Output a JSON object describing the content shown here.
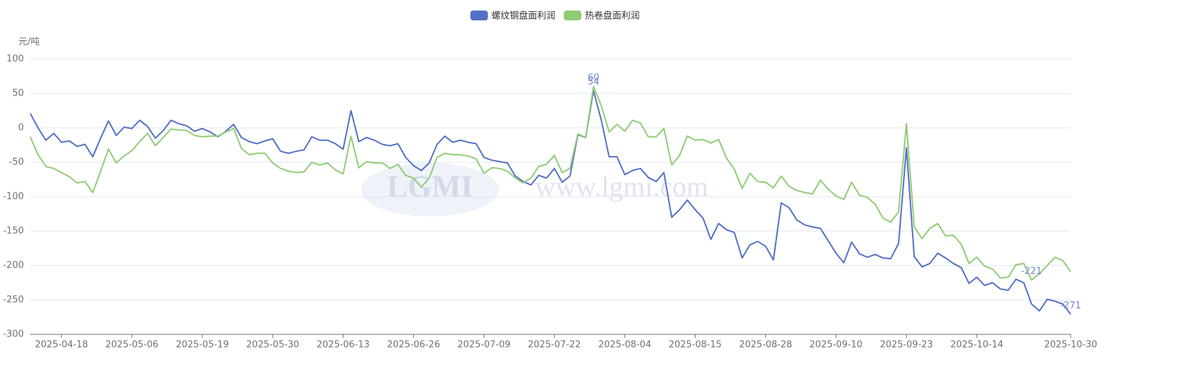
{
  "chart_data": {
    "type": "line",
    "y_unit": "元/吨",
    "watermark": {
      "logo": "LGMI",
      "site": "www.lgmi.com"
    },
    "legend": "top-center",
    "grid": true,
    "mark_extremes": true,
    "categories": [
      null,
      null,
      null,
      null,
      "2025-04-18",
      null,
      null,
      null,
      null,
      null,
      null,
      null,
      null,
      "2025-05-06",
      null,
      null,
      null,
      null,
      null,
      null,
      null,
      null,
      "2025-05-19",
      null,
      null,
      null,
      null,
      null,
      null,
      null,
      null,
      "2025-05-30",
      null,
      null,
      null,
      null,
      null,
      null,
      null,
      null,
      "2025-06-13",
      null,
      null,
      null,
      null,
      null,
      null,
      null,
      null,
      "2025-06-26",
      null,
      null,
      null,
      null,
      null,
      null,
      null,
      null,
      "2025-07-09",
      null,
      null,
      null,
      null,
      null,
      null,
      null,
      null,
      "2025-07-22",
      null,
      null,
      null,
      null,
      null,
      null,
      null,
      null,
      "2025-08-04",
      null,
      null,
      null,
      null,
      null,
      null,
      null,
      null,
      "2025-08-15",
      null,
      null,
      null,
      null,
      null,
      null,
      null,
      null,
      "2025-08-28",
      null,
      null,
      null,
      null,
      null,
      null,
      null,
      null,
      "2025-09-10",
      null,
      null,
      null,
      null,
      null,
      null,
      null,
      null,
      "2025-09-23",
      null,
      null,
      null,
      null,
      null,
      null,
      null,
      null,
      "2025-10-14",
      null,
      null,
      null,
      null,
      null,
      null,
      null,
      null,
      null,
      null,
      null,
      "2025-10-30"
    ],
    "ylim": [
      -300,
      100
    ],
    "yticks": [
      -300,
      -250,
      -200,
      -150,
      -100,
      -50,
      0,
      50,
      100
    ],
    "series": [
      {
        "name": "螺纹钢盘面利润",
        "color": "#5470c6",
        "values": [
          21,
          0,
          -18,
          -8,
          -21,
          -19,
          -27,
          -24,
          -42,
          -15,
          10,
          -11,
          1,
          -1,
          11,
          2,
          -15,
          -4,
          11,
          6,
          3,
          -5,
          -1,
          -6,
          -13,
          -5,
          5,
          -14,
          -20,
          -23,
          -19,
          -16,
          -34,
          -37,
          -34,
          -32,
          -13,
          -18,
          -18,
          -23,
          -31,
          25,
          -20,
          -14,
          -18,
          -24,
          -26,
          -23,
          -43,
          -55,
          -62,
          -51,
          -24,
          -12,
          -21,
          -18,
          -21,
          -23,
          -43,
          -47,
          -49,
          -51,
          -70,
          -78,
          -83,
          -69,
          -73,
          -59,
          -79,
          -70,
          -10,
          -14,
          54,
          11,
          -42,
          -42,
          -68,
          -62,
          -59,
          -72,
          -78,
          -65,
          -130,
          -119,
          -105,
          -119,
          -131,
          -162,
          -139,
          -148,
          -152,
          -189,
          -170,
          -165,
          -172,
          -192,
          -109,
          -116,
          -134,
          -141,
          -144,
          -146,
          -164,
          -182,
          -196,
          -166,
          -183,
          -188,
          -184,
          -189,
          -190,
          -168,
          -29,
          -187,
          -202,
          -197,
          -182,
          -189,
          -197,
          -203,
          -226,
          -217,
          -229,
          -225,
          -234,
          -236,
          -220,
          -225,
          -256,
          -266,
          -249,
          -252,
          -256,
          -271
        ]
      },
      {
        "name": "热卷盘面利润",
        "color": "#91cc75",
        "values": [
          -13,
          -39,
          -56,
          -59,
          -65,
          -71,
          -80,
          -78,
          -94,
          -63,
          -31,
          -51,
          -41,
          -33,
          -20,
          -8,
          -26,
          -14,
          -2,
          -3,
          -4,
          -11,
          -13,
          -12,
          -12,
          -6,
          -1,
          -30,
          -39,
          -37,
          -37,
          -51,
          -59,
          -63,
          -65,
          -64,
          -50,
          -54,
          -51,
          -61,
          -67,
          -12,
          -58,
          -49,
          -51,
          -51,
          -59,
          -53,
          -69,
          -73,
          -86,
          -73,
          -43,
          -37,
          -39,
          -39,
          -41,
          -45,
          -66,
          -58,
          -59,
          -63,
          -73,
          -80,
          -73,
          -56,
          -53,
          -40,
          -65,
          -59,
          -9,
          -14,
          60,
          32,
          -6,
          5,
          -5,
          11,
          7,
          -13,
          -13,
          -1,
          -54,
          -40,
          -12,
          -18,
          -17,
          -22,
          -17,
          -44,
          -60,
          -88,
          -66,
          -78,
          -79,
          -87,
          -70,
          -85,
          -91,
          -94,
          -96,
          -76,
          -89,
          -99,
          -104,
          -79,
          -98,
          -101,
          -111,
          -131,
          -137,
          -122,
          6,
          -144,
          -161,
          -146,
          -139,
          -157,
          -156,
          -169,
          -197,
          -188,
          -201,
          -205,
          -218,
          -217,
          -199,
          -197,
          -221,
          -212,
          -200,
          -188,
          -193,
          -209
        ]
      }
    ]
  }
}
